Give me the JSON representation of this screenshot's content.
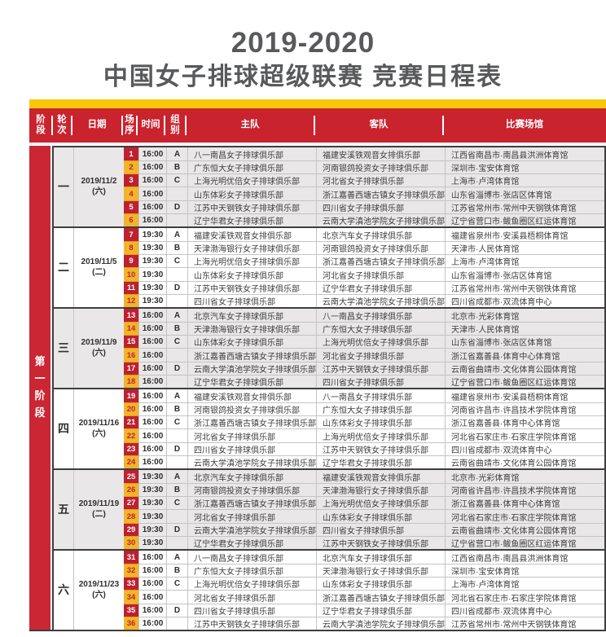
{
  "title": "2019-2020",
  "subtitle": "中国女子排球超级联赛 竞赛日程表",
  "stage_label": "第一阶段",
  "headers": [
    "阶段",
    "轮次",
    "日期",
    "场序",
    "时间",
    "组别",
    "主队",
    "客队",
    "比赛场馆"
  ],
  "colors": {
    "header_red": "#c9232e",
    "stage_bar_red": "#cb2633",
    "accent_yellow": "#f7c70c",
    "order_crimson": "#bd2130",
    "order_gold": "#f2b42c",
    "block_gray": "#e9e7e7",
    "border_dark": "#3f3e3e",
    "title_gray": "#58595b"
  },
  "rounds": [
    {
      "round": "一",
      "date": "2019/11/2",
      "day": "(六)",
      "matches": [
        {
          "no": "1",
          "time": "16:00",
          "group": "A",
          "home": "八一南昌女子排球俱乐部",
          "away": "福建安溪铁观音女排俱乐部",
          "venue": "江西省南昌市·南昌县洪洲体育馆"
        },
        {
          "no": "2",
          "time": "16:00",
          "group": "B",
          "home": "广东恒大女子排球俱乐部",
          "away": "河南银鸽投资女子排球俱乐部",
          "venue": "深圳市·宝安体育馆"
        },
        {
          "no": "3",
          "time": "16:00",
          "group": "C",
          "home": "上海光明优倍女子排球俱乐部",
          "away": "河北省女子排球俱乐部",
          "venue": "上海市·卢湾体育馆"
        },
        {
          "no": "4",
          "time": "16:00",
          "group": "",
          "home": "山东体彩女子排球俱乐部",
          "away": "浙江嘉善西塘古镇女子排球俱乐部",
          "venue": "山东省淄博市·张店区体育馆"
        },
        {
          "no": "5",
          "time": "16:00",
          "group": "D",
          "home": "江苏中天钢铁女子排球俱乐部",
          "away": "四川省女子排球俱乐部",
          "venue": "江苏省常州市·常州中天钢铁体育馆"
        },
        {
          "no": "6",
          "time": "16:00",
          "group": "",
          "home": "辽宁华君女子排球俱乐部",
          "away": "云南大学滇池学院女子排球俱乐部",
          "venue": "辽宁省营口市·鲅鱼圈区红运体育馆"
        }
      ]
    },
    {
      "round": "二",
      "date": "2019/11/5",
      "day": "(二)",
      "matches": [
        {
          "no": "7",
          "time": "19:30",
          "group": "A",
          "home": "福建安溪铁观音女排俱乐部",
          "away": "北京汽车女子排球俱乐部",
          "venue": "福建省泉州市·安溪县梧桐体育馆"
        },
        {
          "no": "8",
          "time": "19:30",
          "group": "B",
          "home": "天津渤海银行女子排球俱乐部",
          "away": "河南银鸽投资女子排球俱乐部",
          "venue": "天津市·人民体育馆"
        },
        {
          "no": "9",
          "time": "19:30",
          "group": "C",
          "home": "上海光明优倍女子排球俱乐部",
          "away": "浙江嘉善西塘古镇女子排球俱乐部",
          "venue": "上海市·卢湾体育馆"
        },
        {
          "no": "10",
          "time": "19:30",
          "group": "",
          "home": "山东体彩女子排球俱乐部",
          "away": "河北省女子排球俱乐部",
          "venue": "山东省淄博市·张店区体育馆"
        },
        {
          "no": "11",
          "time": "19:30",
          "group": "D",
          "home": "江苏中天钢铁女子排球俱乐部",
          "away": "辽宁华君女子排球俱乐部",
          "venue": "江苏省常州市·常州中天钢铁体育馆"
        },
        {
          "no": "12",
          "time": "19:30",
          "group": "",
          "home": "四川省女子排球俱乐部",
          "away": "云南大学滇池学院女子排球俱乐部",
          "venue": "四川省成都市·双流体育中心"
        }
      ]
    },
    {
      "round": "三",
      "date": "2019/11/9",
      "day": "(六)",
      "matches": [
        {
          "no": "13",
          "time": "16:00",
          "group": "A",
          "home": "北京汽车女子排球俱乐部",
          "away": "八一南昌女子排球俱乐部",
          "venue": "北京市·光彩体育馆"
        },
        {
          "no": "14",
          "time": "16:00",
          "group": "B",
          "home": "天津渤海银行女子排球俱乐部",
          "away": "广东恒大女子排球俱乐部",
          "venue": "天津市·人民体育馆"
        },
        {
          "no": "15",
          "time": "16:00",
          "group": "C",
          "home": "山东体彩女子排球俱乐部",
          "away": "上海光明优倍女子排球俱乐部",
          "venue": "山东省淄博市·张店区体育馆"
        },
        {
          "no": "16",
          "time": "16:00",
          "group": "",
          "home": "浙江嘉善西塘古镇女子排球俱乐部",
          "away": "河北省女子排球俱乐部",
          "venue": "浙江省嘉善县·体育中心体育馆"
        },
        {
          "no": "17",
          "time": "16:00",
          "group": "D",
          "home": "云南大学滇池学院女子排球俱乐部",
          "away": "江苏中天钢铁女子排球俱乐部",
          "venue": "云南省曲靖市·文化体育公园体育馆"
        },
        {
          "no": "18",
          "time": "16:00",
          "group": "",
          "home": "辽宁华君女子排球俱乐部",
          "away": "四川省女子排球俱乐部",
          "venue": "辽宁省营口市·鲅鱼圈区红运体育馆"
        }
      ]
    },
    {
      "round": "四",
      "date": "2019/11/16",
      "day": "(六)",
      "matches": [
        {
          "no": "19",
          "time": "16:00",
          "group": "A",
          "home": "福建安溪铁观音女排俱乐部",
          "away": "八一南昌女子排球俱乐部",
          "venue": "福建省泉州市·安溪县梧桐体育馆"
        },
        {
          "no": "20",
          "time": "16:00",
          "group": "B",
          "home": "河南银鸽投资女子排球俱乐部",
          "away": "广东恒大女子排球俱乐部",
          "venue": "河南省许昌市·许昌技术学院体育馆"
        },
        {
          "no": "21",
          "time": "16:00",
          "group": "C",
          "home": "浙江嘉善西塘古镇女子排球俱乐部",
          "away": "山东体彩女子排球俱乐部",
          "venue": "浙江省嘉善县·体育中心体育馆"
        },
        {
          "no": "22",
          "time": "16:00",
          "group": "",
          "home": "河北省女子排球俱乐部",
          "away": "上海光明优倍女子排球俱乐部",
          "venue": "河北省石家庄市·石家庄学院体育馆"
        },
        {
          "no": "23",
          "time": "16:00",
          "group": "D",
          "home": "四川省女子排球俱乐部",
          "away": "江苏中天钢铁女子排球俱乐部",
          "venue": "四川省成都市·双流体育中心"
        },
        {
          "no": "24",
          "time": "16:00",
          "group": "",
          "home": "云南大学滇池学院女子排球俱乐部",
          "away": "辽宁华君女子排球俱乐部",
          "venue": "云南省曲靖市·文化体育公园体育馆"
        }
      ]
    },
    {
      "round": "五",
      "date": "2019/11/19",
      "day": "(二)",
      "matches": [
        {
          "no": "25",
          "time": "19:30",
          "group": "A",
          "home": "北京汽车女子排球俱乐部",
          "away": "福建安溪铁观音女排俱乐部",
          "venue": "北京市·光彩体育馆"
        },
        {
          "no": "26",
          "time": "19:30",
          "group": "B",
          "home": "河南银鸽投资女子排球俱乐部",
          "away": "天津渤海银行女子排球俱乐部",
          "venue": "河南省许昌市·许昌技术学院体育馆"
        },
        {
          "no": "27",
          "time": "19:30",
          "group": "C",
          "home": "浙江嘉善西塘古镇女子排球俱乐部",
          "away": "上海光明优倍女子排球俱乐部",
          "venue": "浙江省嘉善县·体育中心体育馆"
        },
        {
          "no": "28",
          "time": "19:30",
          "group": "",
          "home": "河北省女子排球俱乐部",
          "away": "山东体彩女子排球俱乐部",
          "venue": "河北省石家庄市·石家庄学院体育馆"
        },
        {
          "no": "29",
          "time": "19:30",
          "group": "D",
          "home": "云南大学滇池学院女子排球俱乐部",
          "away": "四川省女子排球俱乐部",
          "venue": "云南省曲靖市·文化体育公园体育馆"
        },
        {
          "no": "30",
          "time": "19:30",
          "group": "",
          "home": "辽宁华君女子排球俱乐部",
          "away": "江苏中天钢铁女子排球俱乐部",
          "venue": "辽宁省营口市·鲅鱼圈区红运体育馆"
        }
      ]
    },
    {
      "round": "六",
      "date": "2019/11/23",
      "day": "(六)",
      "matches": [
        {
          "no": "31",
          "time": "16:00",
          "group": "A",
          "home": "八一南昌女子排球俱乐部",
          "away": "北京汽车女子排球俱乐部",
          "venue": "江西省南昌市·南昌县洪洲体育馆"
        },
        {
          "no": "32",
          "time": "16:00",
          "group": "B",
          "home": "广东恒大女子排球俱乐部",
          "away": "天津渤海银行女子排球俱乐部",
          "venue": "深圳市·宝安体育馆"
        },
        {
          "no": "33",
          "time": "16:00",
          "group": "C",
          "home": "上海光明优倍女子排球俱乐部",
          "away": "山东体彩女子排球俱乐部",
          "venue": "上海市·卢湾体育馆"
        },
        {
          "no": "34",
          "time": "16:00",
          "group": "",
          "home": "河北省女子排球俱乐部",
          "away": "浙江嘉善西塘古镇女子排球俱乐部",
          "venue": "河北省石家庄市·石家庄学院体育馆"
        },
        {
          "no": "35",
          "time": "16:00",
          "group": "D",
          "home": "四川省女子排球俱乐部",
          "away": "辽宁华君女子排球俱乐部",
          "venue": "四川省成都市·双流体育中心"
        },
        {
          "no": "36",
          "time": "16:00",
          "group": "",
          "home": "江苏中天钢铁女子排球俱乐部",
          "away": "云南大学滇池学院女子排球俱乐部",
          "venue": "江苏省常州市·常州中天钢铁体育馆"
        }
      ]
    }
  ]
}
